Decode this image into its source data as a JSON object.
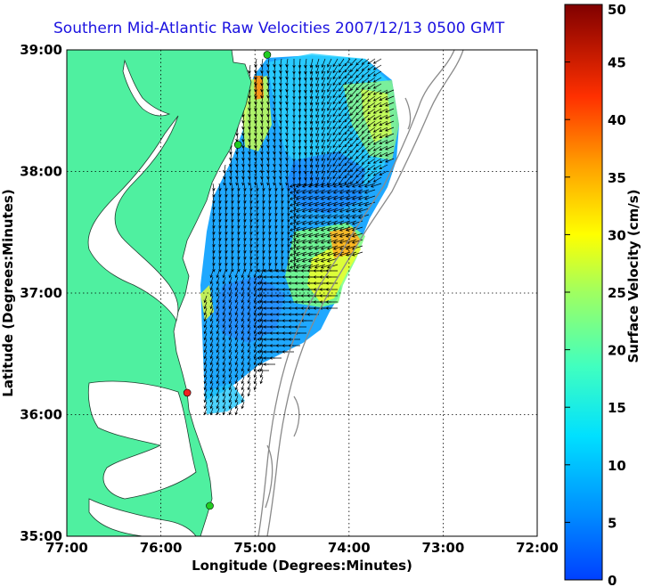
{
  "title": "Southern Mid-Atlantic Raw Velocities 2007/12/13 0500 GMT",
  "map": {
    "xlabel": "Longitude (Degrees:Minutes)",
    "ylabel": "Latitude (Degrees:Minutes)",
    "x_ticks": [
      "77:00",
      "76:00",
      "75:00",
      "74:00",
      "73:00",
      "72:00"
    ],
    "y_ticks": [
      "39:00",
      "38:00",
      "37:00",
      "36:00",
      "35:00"
    ],
    "lon_range": [
      -77,
      -72
    ],
    "lat_range": [
      35,
      39
    ],
    "land_color": "#4ff0a0",
    "water_color": "#ffffff",
    "bathymetry_color": "#8a8a8a",
    "grid": true,
    "stations": [
      {
        "lon": -74.87,
        "lat": 38.96,
        "color": "#22cc22"
      },
      {
        "lon": -75.18,
        "lat": 38.22,
        "color": "#22cc22"
      },
      {
        "lon": -75.72,
        "lat": 36.18,
        "color": "#ee2222"
      },
      {
        "lon": -75.48,
        "lat": 35.25,
        "color": "#22cc22"
      }
    ]
  },
  "colorbar": {
    "label": "Surface Velocity (cm/s)",
    "ticks": [
      "50",
      "45",
      "40",
      "35",
      "30",
      "25",
      "20",
      "15",
      "10",
      "5",
      "0"
    ],
    "range": [
      0,
      50
    ],
    "colormap": "jet"
  }
}
